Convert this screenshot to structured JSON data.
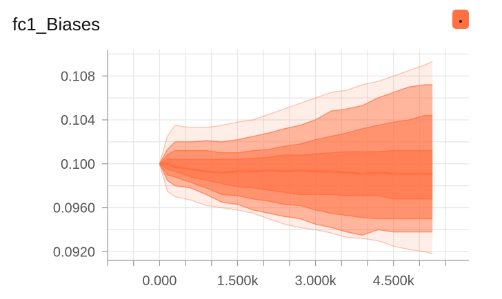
{
  "header": {
    "title": "fc1_Biases"
  },
  "colors": {
    "accent": "#ff7043",
    "grid": "#e6e6e6",
    "axis": "#999999",
    "text": "#555555"
  },
  "chart_data": {
    "type": "area",
    "xlim": [
      -1000,
      5950
    ],
    "ylim": [
      0.0912,
      0.1104
    ],
    "xticks": [
      0,
      1500,
      3000,
      4500
    ],
    "xtick_labels": [
      "0.000",
      "1.500k",
      "3.000k",
      "4.500k"
    ],
    "yticks": [
      0.108,
      0.104,
      0.1,
      0.096,
      0.092
    ],
    "ytick_labels": [
      "0.108",
      "0.104",
      "0.100",
      "0.0960",
      "0.0920"
    ],
    "grid": true,
    "x": [
      0,
      150,
      300,
      600,
      900,
      1200,
      1500,
      1800,
      2100,
      2400,
      2700,
      3000,
      3300,
      3600,
      3900,
      4200,
      4500,
      4800,
      5100,
      5250
    ],
    "bands": [
      {
        "lower": [
          0.1,
          0.0975,
          0.097,
          0.0967,
          0.0962,
          0.096,
          0.0958,
          0.0955,
          0.095,
          0.0945,
          0.0942,
          0.094,
          0.0937,
          0.0933,
          0.0932,
          0.093,
          0.0925,
          0.0922,
          0.092,
          0.0918
        ],
        "upper": [
          0.1,
          0.1025,
          0.1035,
          0.1033,
          0.1033,
          0.1035,
          0.1038,
          0.104,
          0.1045,
          0.105,
          0.1055,
          0.106,
          0.1065,
          0.1067,
          0.1072,
          0.1075,
          0.108,
          0.1085,
          0.109,
          0.1093
        ],
        "opacity": 0.12
      },
      {
        "lower": [
          0.1,
          0.0985,
          0.098,
          0.0978,
          0.0972,
          0.0965,
          0.0963,
          0.0958,
          0.0955,
          0.0952,
          0.095,
          0.0945,
          0.0942,
          0.0938,
          0.0935,
          0.094,
          0.0938,
          0.0938,
          0.0938,
          0.0938
        ],
        "upper": [
          0.1,
          0.1013,
          0.102,
          0.102,
          0.1021,
          0.102,
          0.1022,
          0.1025,
          0.1028,
          0.1032,
          0.1035,
          0.104,
          0.1048,
          0.105,
          0.1053,
          0.106,
          0.1065,
          0.107,
          0.1072,
          0.1072
        ],
        "opacity": 0.45
      },
      {
        "lower": [
          0.1,
          0.099,
          0.0988,
          0.0983,
          0.0978,
          0.0972,
          0.0971,
          0.0968,
          0.0966,
          0.0963,
          0.0962,
          0.0958,
          0.0955,
          0.0953,
          0.0951,
          0.095,
          0.095,
          0.095,
          0.095,
          0.095
        ],
        "upper": [
          0.1,
          0.1008,
          0.1012,
          0.1012,
          0.1012,
          0.101,
          0.101,
          0.1012,
          0.1013,
          0.1016,
          0.1018,
          0.1022,
          0.1025,
          0.1028,
          0.1032,
          0.1035,
          0.1038,
          0.104,
          0.1044,
          0.1044
        ],
        "opacity": 0.5
      },
      {
        "lower": [
          0.1,
          0.0995,
          0.0993,
          0.0988,
          0.0985,
          0.0982,
          0.0979,
          0.0978,
          0.0976,
          0.0974,
          0.0972,
          0.0972,
          0.0972,
          0.0971,
          0.0971,
          0.0971,
          0.0968,
          0.0968,
          0.0968,
          0.0968
        ],
        "upper": [
          0.1,
          0.1004,
          0.1004,
          0.1004,
          0.1004,
          0.1004,
          0.1004,
          0.1005,
          0.1006,
          0.1008,
          0.1008,
          0.1009,
          0.101,
          0.1011,
          0.1011,
          0.1011,
          0.1012,
          0.1012,
          0.1012,
          0.1012
        ],
        "opacity": 0.55
      }
    ],
    "median": [
      0.1,
      0.1,
      0.0997,
      0.0995,
      0.0993,
      0.0992,
      0.0993,
      0.0993,
      0.0994,
      0.0993,
      0.0994,
      0.0993,
      0.0993,
      0.0992,
      0.0991,
      0.0992,
      0.0991,
      0.0991,
      0.0991,
      0.0991
    ]
  }
}
